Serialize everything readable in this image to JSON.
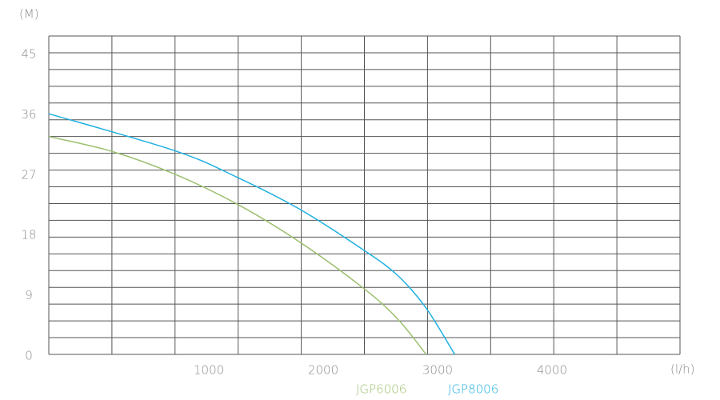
{
  "chart_data": {
    "type": "line",
    "y_unit": "(M)",
    "x_unit": "(l/h)",
    "xlim": [
      -400,
      5120
    ],
    "xticks": [
      1000,
      2000,
      3000,
      4000
    ],
    "ylim": [
      0,
      47.5
    ],
    "yticks": [
      0,
      9,
      18,
      27,
      36,
      45
    ],
    "grid": true,
    "series": [
      {
        "name": "JGP6006",
        "color": "#9dbf6f",
        "x": [
          -400,
          150,
          700,
          1250,
          1800,
          2350,
          2650,
          2900
        ],
        "values": [
          32.5,
          30.3,
          26.9,
          22.4,
          16.7,
          9.9,
          5.3,
          0
        ]
      },
      {
        "name": "JGP8006",
        "color": "#1fb0e0",
        "x": [
          -400,
          700,
          1250,
          1800,
          2350,
          2650,
          2900,
          3150
        ],
        "values": [
          35.9,
          30.4,
          26.4,
          21.6,
          15.6,
          11.8,
          6.9,
          0
        ]
      }
    ]
  }
}
